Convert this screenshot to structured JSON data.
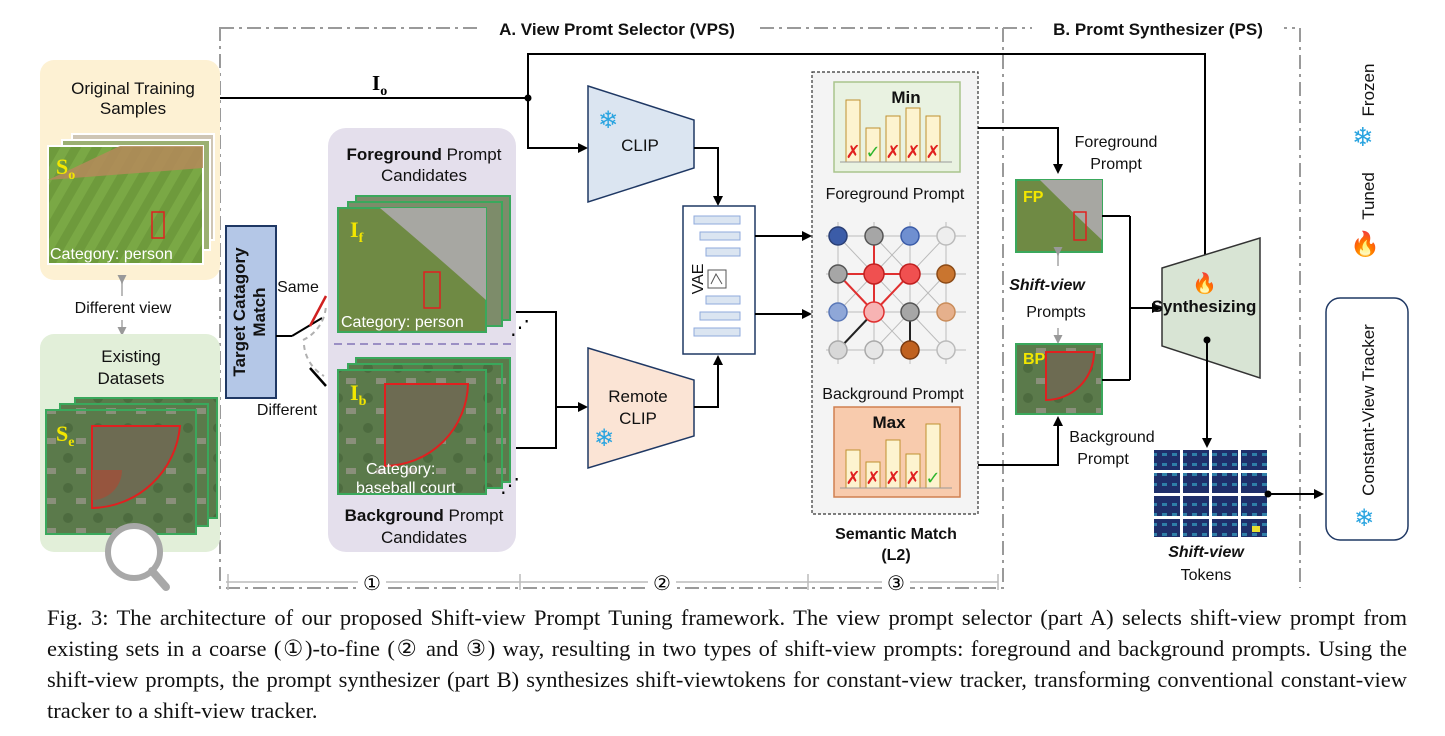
{
  "sections": {
    "vps_title": "A. View Promt Selector (VPS)",
    "ps_title": "B. Promt Synthesizer (PS)"
  },
  "inputs": {
    "original_title_1": "Original Training",
    "original_title_2": "Samples",
    "so_label": "S",
    "so_sub": "o",
    "so_category": "Category: person",
    "different_view": "Different view",
    "existing_title_1": "Existing",
    "existing_title_2": "Datasets",
    "se_label": "S",
    "se_sub": "e"
  },
  "match": {
    "label_1": "Target Catagory",
    "label_2": "Match",
    "same": "Same",
    "different": "Different"
  },
  "io": {
    "label": "I",
    "sub": "o"
  },
  "candidates": {
    "fg_bold": "Foreground",
    "fg_rest": " Prompt",
    "fg_line2": "Candidates",
    "if_label": "I",
    "if_sub": "f",
    "if_category": "Category: person",
    "ib_label": "I",
    "ib_sub": "b",
    "ib_category_1": "Category:",
    "ib_category_2": "baseball court",
    "bg_bold": "Background",
    "bg_rest": " Prompt",
    "bg_line2": "Candidates"
  },
  "encoders": {
    "clip": "CLIP",
    "remote_1": "Remote",
    "remote_2": "CLIP",
    "vae": "VAE"
  },
  "semantic": {
    "min": "Min",
    "max": "Max",
    "fg_prompt": "Foreground Prompt",
    "bg_prompt": "Background Prompt",
    "title_1": "Semantic Match",
    "title_2": "(L2)",
    "min_marks": [
      "✗",
      "✓",
      "✗",
      "✗",
      "✗"
    ],
    "max_marks": [
      "✗",
      "✗",
      "✗",
      "✗",
      "✓"
    ]
  },
  "synth": {
    "fg_prompt_1": "Foreground",
    "fg_prompt_2": "Prompt",
    "fp": "FP",
    "shift_view": "Shift-view",
    "prompts": "Prompts",
    "bp": "BP",
    "bg_prompt_1": "Background",
    "bg_prompt_2": "Prompt",
    "synthesizing": "Synthesizing",
    "tokens_1": "Shift-view",
    "tokens_2": "Tokens",
    "tracker": "Constant-View Tracker"
  },
  "legend": {
    "frozen": "Frozen",
    "tuned": "Tuned"
  },
  "steps": [
    "①",
    "②",
    "③"
  ],
  "caption": "Fig. 3: The architecture of our proposed Shift-view Prompt Tuning framework. The view prompt selector (part A) selects shift-view prompt from existing sets in a coarse (①)-to-fine (② and ③) way, resulting in two types of shift-view prompts: foreground and background prompts. Using the shift-view prompts, the prompt synthesizer (part B) synthesizes shift-viewtokens for constant-view tracker, transforming conventional constant-view tracker to a shift-view tracker.",
  "colors": {
    "clip_fill": "#dbe5f1",
    "remote_fill": "#fbe4d5",
    "synth_fill": "#d8e4d4",
    "min_fill": "#e9f2e1",
    "max_fill": "#f8cbad",
    "bar_fill": "#fdf3cf",
    "snowflake": "#2aa4e0",
    "cross": "#e02020",
    "check": "#2db52d"
  }
}
